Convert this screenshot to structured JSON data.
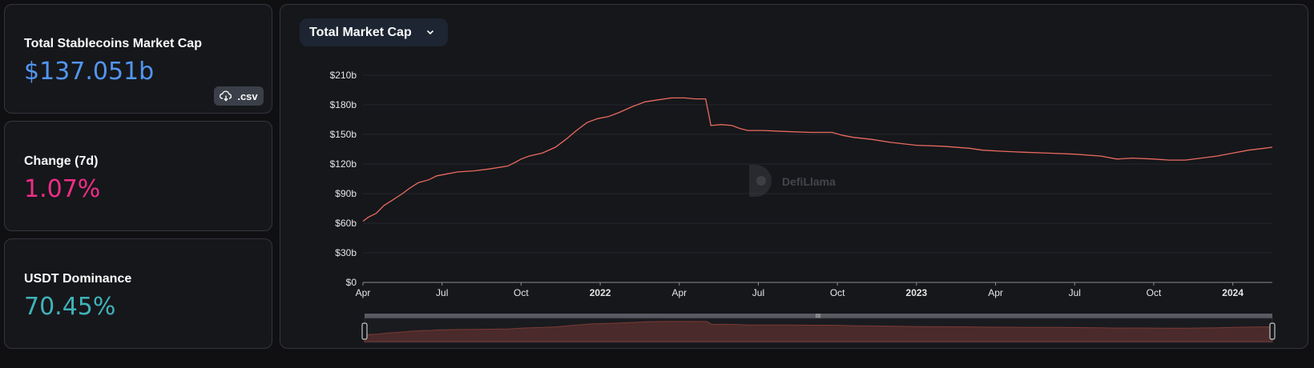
{
  "stats": {
    "market_cap": {
      "title": "Total Stablecoins Market Cap",
      "value": "$137.051b",
      "color": "#5296f0"
    },
    "change": {
      "title": "Change (7d)",
      "value": "1.07%",
      "color": "#f02d87"
    },
    "dominance": {
      "title": "USDT Dominance",
      "value": "70.45%",
      "color": "#3fb3b8"
    }
  },
  "csv_button": {
    "label": ".csv",
    "icon": "cloud-download-icon"
  },
  "selector": {
    "label": "Total Market Cap",
    "icon": "chevron-down-icon"
  },
  "watermark": {
    "text": "DefiLlama"
  },
  "colors": {
    "line": "#e86a5f",
    "brush_fill": "#4a2a2a",
    "grid": "#26272c"
  },
  "chart_data": {
    "type": "line",
    "x_ticks": [
      {
        "t": 0,
        "label": "Apr",
        "bold": false
      },
      {
        "t": 3,
        "label": "Jul",
        "bold": false
      },
      {
        "t": 6,
        "label": "Oct",
        "bold": false
      },
      {
        "t": 9,
        "label": "2022",
        "bold": true
      },
      {
        "t": 12,
        "label": "Apr",
        "bold": false
      },
      {
        "t": 15,
        "label": "Jul",
        "bold": false
      },
      {
        "t": 18,
        "label": "Oct",
        "bold": false
      },
      {
        "t": 21,
        "label": "2023",
        "bold": true
      },
      {
        "t": 24,
        "label": "Apr",
        "bold": false
      },
      {
        "t": 27,
        "label": "Jul",
        "bold": false
      },
      {
        "t": 30,
        "label": "Oct",
        "bold": false
      },
      {
        "t": 33,
        "label": "2024",
        "bold": true
      }
    ],
    "y_ticks": [
      "$0",
      "$30b",
      "$60b",
      "$90b",
      "$120b",
      "$150b",
      "$180b",
      "$210b"
    ],
    "y_values": [
      0,
      30,
      60,
      90,
      120,
      150,
      180,
      210
    ],
    "ylim": [
      0,
      210
    ],
    "xlim": [
      0,
      34.5
    ],
    "series": [
      {
        "points": [
          [
            0,
            62
          ],
          [
            0.2,
            66
          ],
          [
            0.5,
            70
          ],
          [
            0.8,
            78
          ],
          [
            1.1,
            83
          ],
          [
            1.5,
            90
          ],
          [
            1.8,
            96
          ],
          [
            2.1,
            101
          ],
          [
            2.5,
            104
          ],
          [
            2.8,
            108
          ],
          [
            3.2,
            110
          ],
          [
            3.6,
            112
          ],
          [
            4.2,
            113
          ],
          [
            4.8,
            115
          ],
          [
            5.5,
            118
          ],
          [
            5.8,
            122
          ],
          [
            6.0,
            125
          ],
          [
            6.3,
            128
          ],
          [
            6.8,
            131
          ],
          [
            7.3,
            137
          ],
          [
            7.7,
            145
          ],
          [
            8.1,
            154
          ],
          [
            8.5,
            162
          ],
          [
            8.9,
            166
          ],
          [
            9.3,
            168
          ],
          [
            9.7,
            172
          ],
          [
            10.2,
            178
          ],
          [
            10.7,
            183
          ],
          [
            11.2,
            185
          ],
          [
            11.7,
            187
          ],
          [
            12.2,
            187
          ],
          [
            12.6,
            186
          ],
          [
            13.0,
            186
          ],
          [
            13.2,
            159
          ],
          [
            13.6,
            160
          ],
          [
            14.0,
            159
          ],
          [
            14.3,
            156
          ],
          [
            14.6,
            154
          ],
          [
            15.2,
            154
          ],
          [
            16.0,
            153
          ],
          [
            17.0,
            152
          ],
          [
            17.8,
            152
          ],
          [
            18.2,
            149
          ],
          [
            18.6,
            147
          ],
          [
            19.3,
            145
          ],
          [
            20.0,
            142
          ],
          [
            21.0,
            139
          ],
          [
            22.0,
            138
          ],
          [
            23.0,
            136
          ],
          [
            23.5,
            134
          ],
          [
            24.2,
            133
          ],
          [
            25.0,
            132
          ],
          [
            26.0,
            131
          ],
          [
            27.0,
            130
          ],
          [
            28.0,
            128
          ],
          [
            28.6,
            125
          ],
          [
            29.2,
            126
          ],
          [
            30.0,
            125
          ],
          [
            30.6,
            124
          ],
          [
            31.2,
            124
          ],
          [
            31.8,
            126
          ],
          [
            32.4,
            128
          ],
          [
            33.0,
            131
          ],
          [
            33.6,
            134
          ],
          [
            34.2,
            136
          ],
          [
            34.5,
            137
          ]
        ]
      }
    ]
  }
}
